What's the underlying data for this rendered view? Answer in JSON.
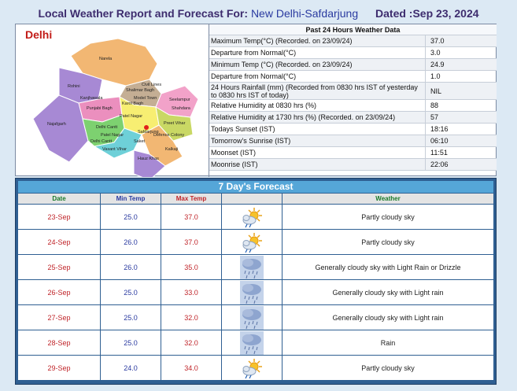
{
  "header": {
    "title_prefix": "Local Weather Report and Forecast For:",
    "station": "New Delhi-Safdarjung",
    "dated": "Dated :Sep 23, 2024"
  },
  "map": {
    "title": "Delhi",
    "districts": [
      "Narela",
      "Rohini",
      "Shalimar Bagh",
      "Model Town",
      "Seelampur",
      "Shahdara",
      "Punjabi Bagh",
      "Patel Nagar",
      "Kanjhawala",
      "Preet Vihar",
      "Delhi Cantt",
      "Defence Colony",
      "Najafgarh",
      "Kalkaji",
      "Hauz Khas",
      "Vasant Vihar",
      "Saket",
      "Safdarjung",
      "Patel Nagar",
      "Karol Bagh",
      "Civil Lines",
      "Delhi Cantt"
    ],
    "marker_color": "#e0201b"
  },
  "past24": {
    "header": "Past 24 Hours Weather Data",
    "rows": [
      {
        "label": "Maximum Temp(°C) (Recorded. on 23/09/24)",
        "value": "37.0"
      },
      {
        "label": "Departure from Normal(°C)",
        "value": "3.0"
      },
      {
        "label": "Minimum Temp (°C) (Recorded. on 23/09/24)",
        "value": "24.9"
      },
      {
        "label": "Departure from Normal(°C)",
        "value": "1.0"
      },
      {
        "label": "24 Hours Rainfall (mm) (Recorded from 0830 hrs IST of yesterday to 0830 hrs IST of today)",
        "value": "NIL"
      },
      {
        "label": "Relative Humidity at 0830 hrs (%)",
        "value": "88"
      },
      {
        "label": "Relative Humidity at 1730 hrs (%) (Recorded. on 23/09/24)",
        "value": "57"
      },
      {
        "label": "Todays Sunset (IST)",
        "value": "18:16"
      },
      {
        "label": "Tomorrow's Sunrise (IST)",
        "value": "06:10"
      },
      {
        "label": "Moonset (IST)",
        "value": "11:51"
      },
      {
        "label": "Moonrise (IST)",
        "value": "22:06"
      }
    ]
  },
  "forecast": {
    "title": "7 Day's Forecast",
    "columns": {
      "date": "Date",
      "min": "Min Temp",
      "max": "Max Temp",
      "icon": "",
      "weather": "Weather"
    },
    "rows": [
      {
        "date": "23-Sep",
        "min": "25.0",
        "max": "37.0",
        "icon": "partly-cloudy-icon",
        "weather": "Partly cloudy sky"
      },
      {
        "date": "24-Sep",
        "min": "26.0",
        "max": "37.0",
        "icon": "partly-cloudy-icon",
        "weather": "Partly cloudy sky"
      },
      {
        "date": "25-Sep",
        "min": "26.0",
        "max": "35.0",
        "icon": "rain-cloud-icon",
        "weather": "Generally cloudy sky with Light Rain or Drizzle"
      },
      {
        "date": "26-Sep",
        "min": "25.0",
        "max": "33.0",
        "icon": "rain-cloud-icon",
        "weather": "Generally cloudy sky with Light rain"
      },
      {
        "date": "27-Sep",
        "min": "25.0",
        "max": "32.0",
        "icon": "rain-cloud-icon",
        "weather": "Generally cloudy sky with Light rain"
      },
      {
        "date": "28-Sep",
        "min": "25.0",
        "max": "32.0",
        "icon": "rain-cloud-icon",
        "weather": "Rain"
      },
      {
        "date": "29-Sep",
        "min": "24.0",
        "max": "34.0",
        "icon": "partly-cloudy-icon",
        "weather": "Partly cloudy sky"
      }
    ]
  }
}
